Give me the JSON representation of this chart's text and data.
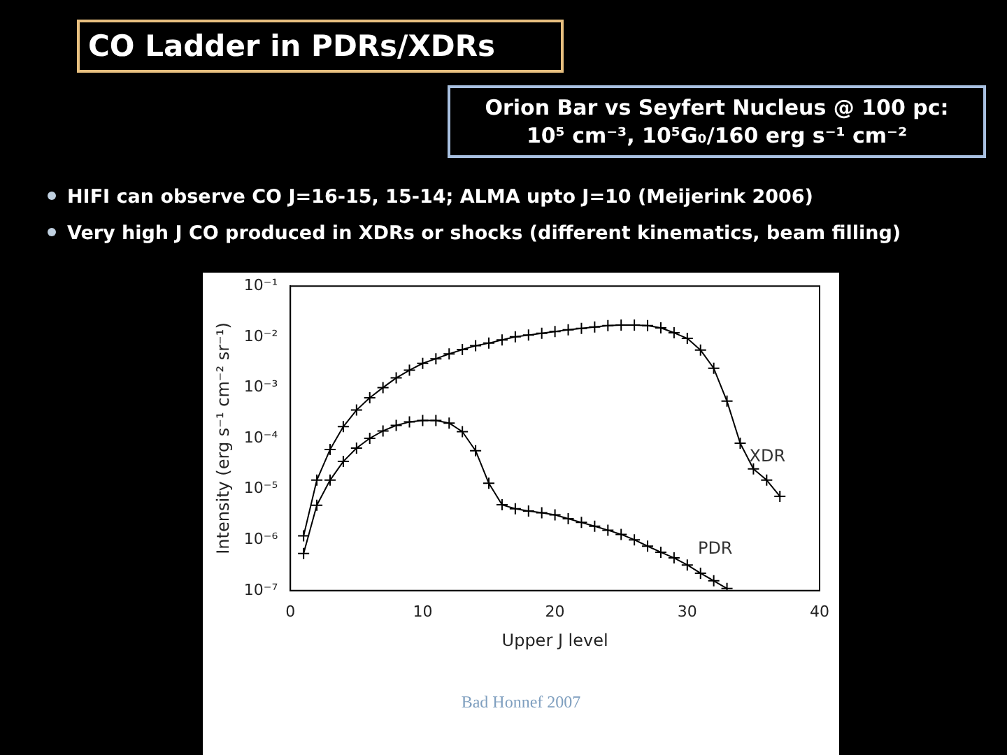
{
  "chart_data": {
    "type": "line",
    "title": "CO Ladder in PDRs/XDRs",
    "subtitle": "Orion Bar vs Seyfert Nucleus @ 100 pc: 10⁵ cm⁻³, 10⁵G₀/160 erg s⁻¹ cm⁻²",
    "annotations": [
      "HIFI can observe CO J=16-15, 15-14; ALMA upto J=10 (Meijerink 2006)",
      "Very high J CO produced in XDRs or shocks (different kinematics, beam filling)",
      "Bad Honnef 2007"
    ],
    "xlabel": "Upper J level",
    "ylabel": "Intensity (erg s⁻¹ cm⁻² sr⁻¹)",
    "x": [
      1,
      2,
      3,
      4,
      5,
      6,
      7,
      8,
      9,
      10,
      11,
      12,
      13,
      14,
      15,
      16,
      17,
      18,
      19,
      20,
      21,
      22,
      23,
      24,
      25,
      26,
      27,
      28,
      29,
      30,
      31,
      32,
      33,
      34,
      35,
      36,
      37
    ],
    "series": [
      {
        "name": "XDR",
        "color": "#000000",
        "values": [
          1.2e-06,
          1.5e-05,
          6e-05,
          0.00017,
          0.00036,
          0.00063,
          0.001,
          0.00155,
          0.0022,
          0.003,
          0.0037,
          0.0046,
          0.0056,
          0.0067,
          0.0075,
          0.0087,
          0.01,
          0.0108,
          0.0117,
          0.0127,
          0.0138,
          0.0147,
          0.0156,
          0.0166,
          0.017,
          0.017,
          0.0166,
          0.015,
          0.012,
          0.0093,
          0.0055,
          0.0024,
          0.00054,
          8e-05,
          2.5e-05,
          1.5e-05,
          7.2e-06
        ]
      },
      {
        "name": "PDR",
        "color": "#000000",
        "values": [
          5.4e-07,
          4.8e-06,
          1.5e-05,
          3.5e-05,
          6.4e-05,
          0.0001,
          0.00014,
          0.00018,
          0.00021,
          0.000225,
          0.000225,
          0.0002,
          0.000135,
          5.7e-05,
          1.3e-05,
          4.9e-06,
          4.1e-06,
          3.7e-06,
          3.4e-06,
          3.1e-06,
          2.6e-06,
          2.2e-06,
          1.85e-06,
          1.55e-06,
          1.28e-06,
          1e-06,
          7.5e-07,
          5.7e-07,
          4.4e-07,
          3.2e-07,
          2.2e-07,
          1.56e-07,
          1.1e-07,
          null,
          null,
          null,
          null
        ]
      }
    ],
    "log": "y",
    "marker": "cross",
    "line_style": "solid",
    "grid": false,
    "legend": false,
    "xlim": [
      0,
      40
    ],
    "xticks": [
      0,
      10,
      20,
      30,
      40
    ],
    "ylim": [
      1e-07,
      0.1
    ],
    "yticks": [
      {
        "value": 1e-07,
        "label": "10⁻⁷"
      },
      {
        "value": 1e-06,
        "label": "10⁻⁶"
      },
      {
        "value": 1e-05,
        "label": "10⁻⁵"
      },
      {
        "value": 0.0001,
        "label": "10⁻⁴"
      },
      {
        "value": 0.001,
        "label": "10⁻³"
      },
      {
        "value": 0.01,
        "label": "10⁻²"
      },
      {
        "value": 0.1,
        "label": "10⁻¹"
      }
    ]
  }
}
